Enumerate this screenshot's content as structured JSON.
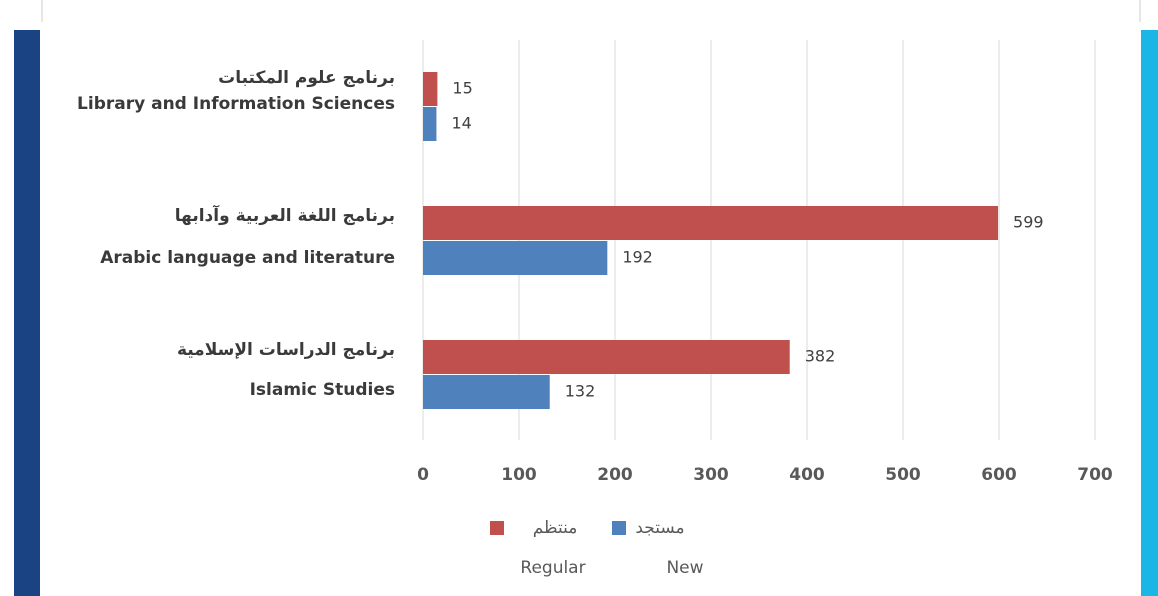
{
  "chart_data": {
    "type": "barh",
    "categories": [
      "Library and Information Sciences",
      "Arabic language and literature",
      "Islamic Studies"
    ],
    "categories_ar": [
      "برنامج علوم المكتبات",
      "برنامج اللغة العربية وآدابها",
      "برنامج الدراسات الإسلامية"
    ],
    "series": [
      {
        "name": "منتظم",
        "name_en": "Regular",
        "color": "#c0504d",
        "values": [
          15,
          599,
          382
        ]
      },
      {
        "name": "مستجد",
        "name_en": "New",
        "color": "#4f81bd",
        "values": [
          14,
          192,
          132
        ]
      }
    ],
    "xlim": [
      0,
      700
    ],
    "xticks": [
      0,
      100,
      200,
      300,
      400,
      500,
      600,
      700
    ],
    "grid": true
  }
}
